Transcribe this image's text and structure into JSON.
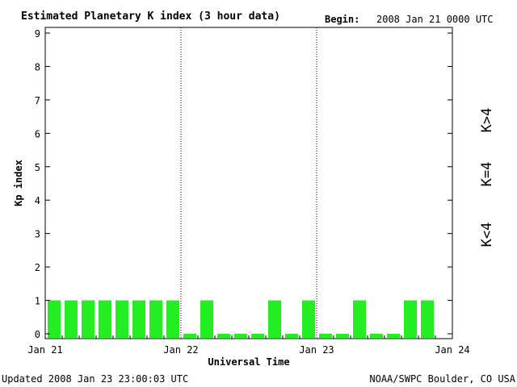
{
  "header": {
    "title": "Estimated Planetary K index (3 hour data)",
    "begin_label": "Begin:",
    "begin_value": "2008 Jan 21 0000 UTC"
  },
  "footer": {
    "updated": "Updated 2008 Jan 23 23:00:03 UTC",
    "source": "NOAA/SWPC Boulder, CO USA"
  },
  "legend": {
    "high": {
      "label": "K>4",
      "color": "#ff2200"
    },
    "mid": {
      "label": "K=4",
      "color": "#ffd800"
    },
    "low": {
      "label": "K<4",
      "color": "#22ee22"
    }
  },
  "chart_data": {
    "type": "bar",
    "title": "Estimated Planetary K index (3 hour data)",
    "xlabel": "Universal Time",
    "ylabel": "Kp index",
    "ylim": [
      0,
      9
    ],
    "yticks": [
      "0",
      "1",
      "2",
      "3",
      "4",
      "5",
      "6",
      "7",
      "8",
      "9"
    ],
    "x_ticks": [
      "Jan 21",
      "Jan 22",
      "Jan 23",
      "Jan 24"
    ],
    "grid": false,
    "day_separators": [
      "Jan 22",
      "Jan 23"
    ],
    "bar_color": "#22ee22",
    "values": [
      1,
      1,
      1,
      1,
      1,
      1,
      1,
      1,
      0,
      1,
      0,
      0,
      0,
      1,
      0,
      1,
      0,
      0,
      1,
      0,
      0,
      1,
      1
    ]
  }
}
